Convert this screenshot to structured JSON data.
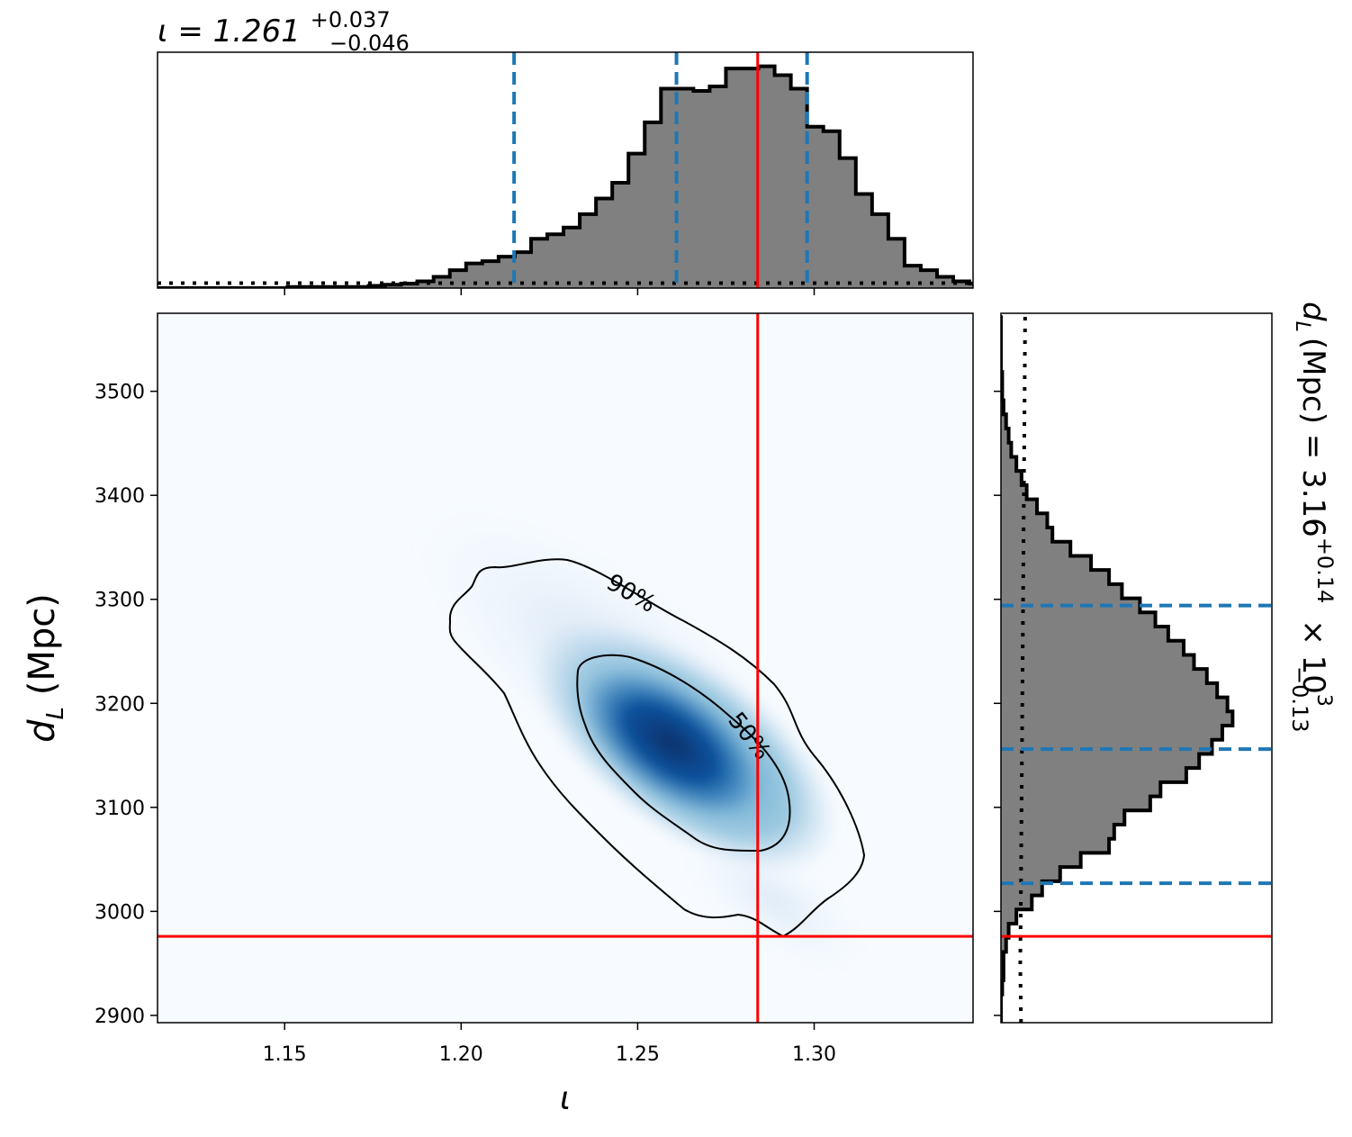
{
  "chart_data": {
    "type": "corner",
    "parameters": {
      "x": {
        "symbol": "ι",
        "label": "ι",
        "median": 1.261,
        "plus": "+0.037",
        "minus": "−0.046",
        "lim": [
          1.114,
          1.345
        ],
        "ticks": [
          1.15,
          1.2,
          1.25,
          1.3
        ],
        "tick_labels": [
          "1.15",
          "1.20",
          "1.25",
          "1.30"
        ],
        "quantile_lines": [
          1.215,
          1.261,
          1.298
        ],
        "true_value": 1.284
      },
      "y": {
        "label_main": "d",
        "label_sub": "L",
        "label_unit": " (Mpc)",
        "median_text": "3.16",
        "plus": "+0.14",
        "minus": "−0.13",
        "scale_text": "× 10",
        "scale_exp": "3",
        "lim": [
          2893,
          3575
        ],
        "ticks": [
          2900,
          3000,
          3100,
          3200,
          3300,
          3400,
          3500
        ],
        "tick_labels": [
          "2900",
          "3000",
          "3100",
          "3200",
          "3300",
          "3400",
          "3500"
        ],
        "quantile_lines": [
          3027,
          3156,
          3294
        ],
        "true_value": 2976
      }
    },
    "title_x": {
      "prefix": "ι = 1.261",
      "sup": "+0.037",
      "sub": "−0.046"
    },
    "title_y": {
      "prefix": "(Mpc) = 3.16",
      "sup": "+0.14",
      "sub": "−0.13",
      "suffix": "× 10",
      "exp": "3"
    },
    "contours": [
      {
        "level": "90%"
      },
      {
        "level": "50%"
      }
    ],
    "hist_x": {
      "edges_start": 1.114,
      "bin_width": 0.0046,
      "counts": [
        0,
        0,
        0,
        0,
        0,
        0,
        0,
        0,
        0.5,
        0.5,
        0.5,
        0.5,
        0.5,
        1,
        1.5,
        2,
        3,
        5,
        8,
        11,
        12,
        14,
        16,
        22,
        24,
        27,
        33,
        40,
        47,
        60,
        74,
        89,
        89,
        88,
        90,
        98,
        98,
        99,
        95,
        89,
        72,
        70,
        58,
        42,
        33,
        22,
        10,
        8,
        5,
        3,
        2,
        1,
        0.5,
        0,
        0
      ],
      "max_count": 100,
      "uniform_prior_level": 2.2
    },
    "hist_y": {
      "edges_start": 2893,
      "bin_width": 13.6,
      "counts": [
        0,
        0,
        0.5,
        1,
        1,
        2,
        3,
        6,
        12,
        16,
        23,
        31,
        42,
        44,
        48,
        58,
        62,
        72,
        77,
        82,
        86,
        90,
        88,
        84,
        80,
        75,
        71,
        65,
        60,
        54,
        47,
        42,
        35,
        27,
        20,
        18,
        14,
        10,
        8,
        6,
        4,
        3,
        2,
        1,
        0.5,
        0.5,
        0,
        0,
        0,
        0
      ],
      "max_count": 100,
      "prior_curve": [
        [
          2893,
          7.8
        ],
        [
          2950,
          7.5
        ],
        [
          3000,
          7.7
        ],
        [
          3100,
          8.0
        ],
        [
          3200,
          8.3
        ],
        [
          3300,
          8.6
        ],
        [
          3400,
          8.9
        ],
        [
          3500,
          9.2
        ],
        [
          3575,
          9.4
        ]
      ]
    },
    "colors": {
      "hist_fill": "#808080",
      "quantile": "#1f77b4",
      "truth": "#ff0000",
      "cmap_high": "#08306b",
      "cmap_low": "#f7fbff"
    }
  }
}
